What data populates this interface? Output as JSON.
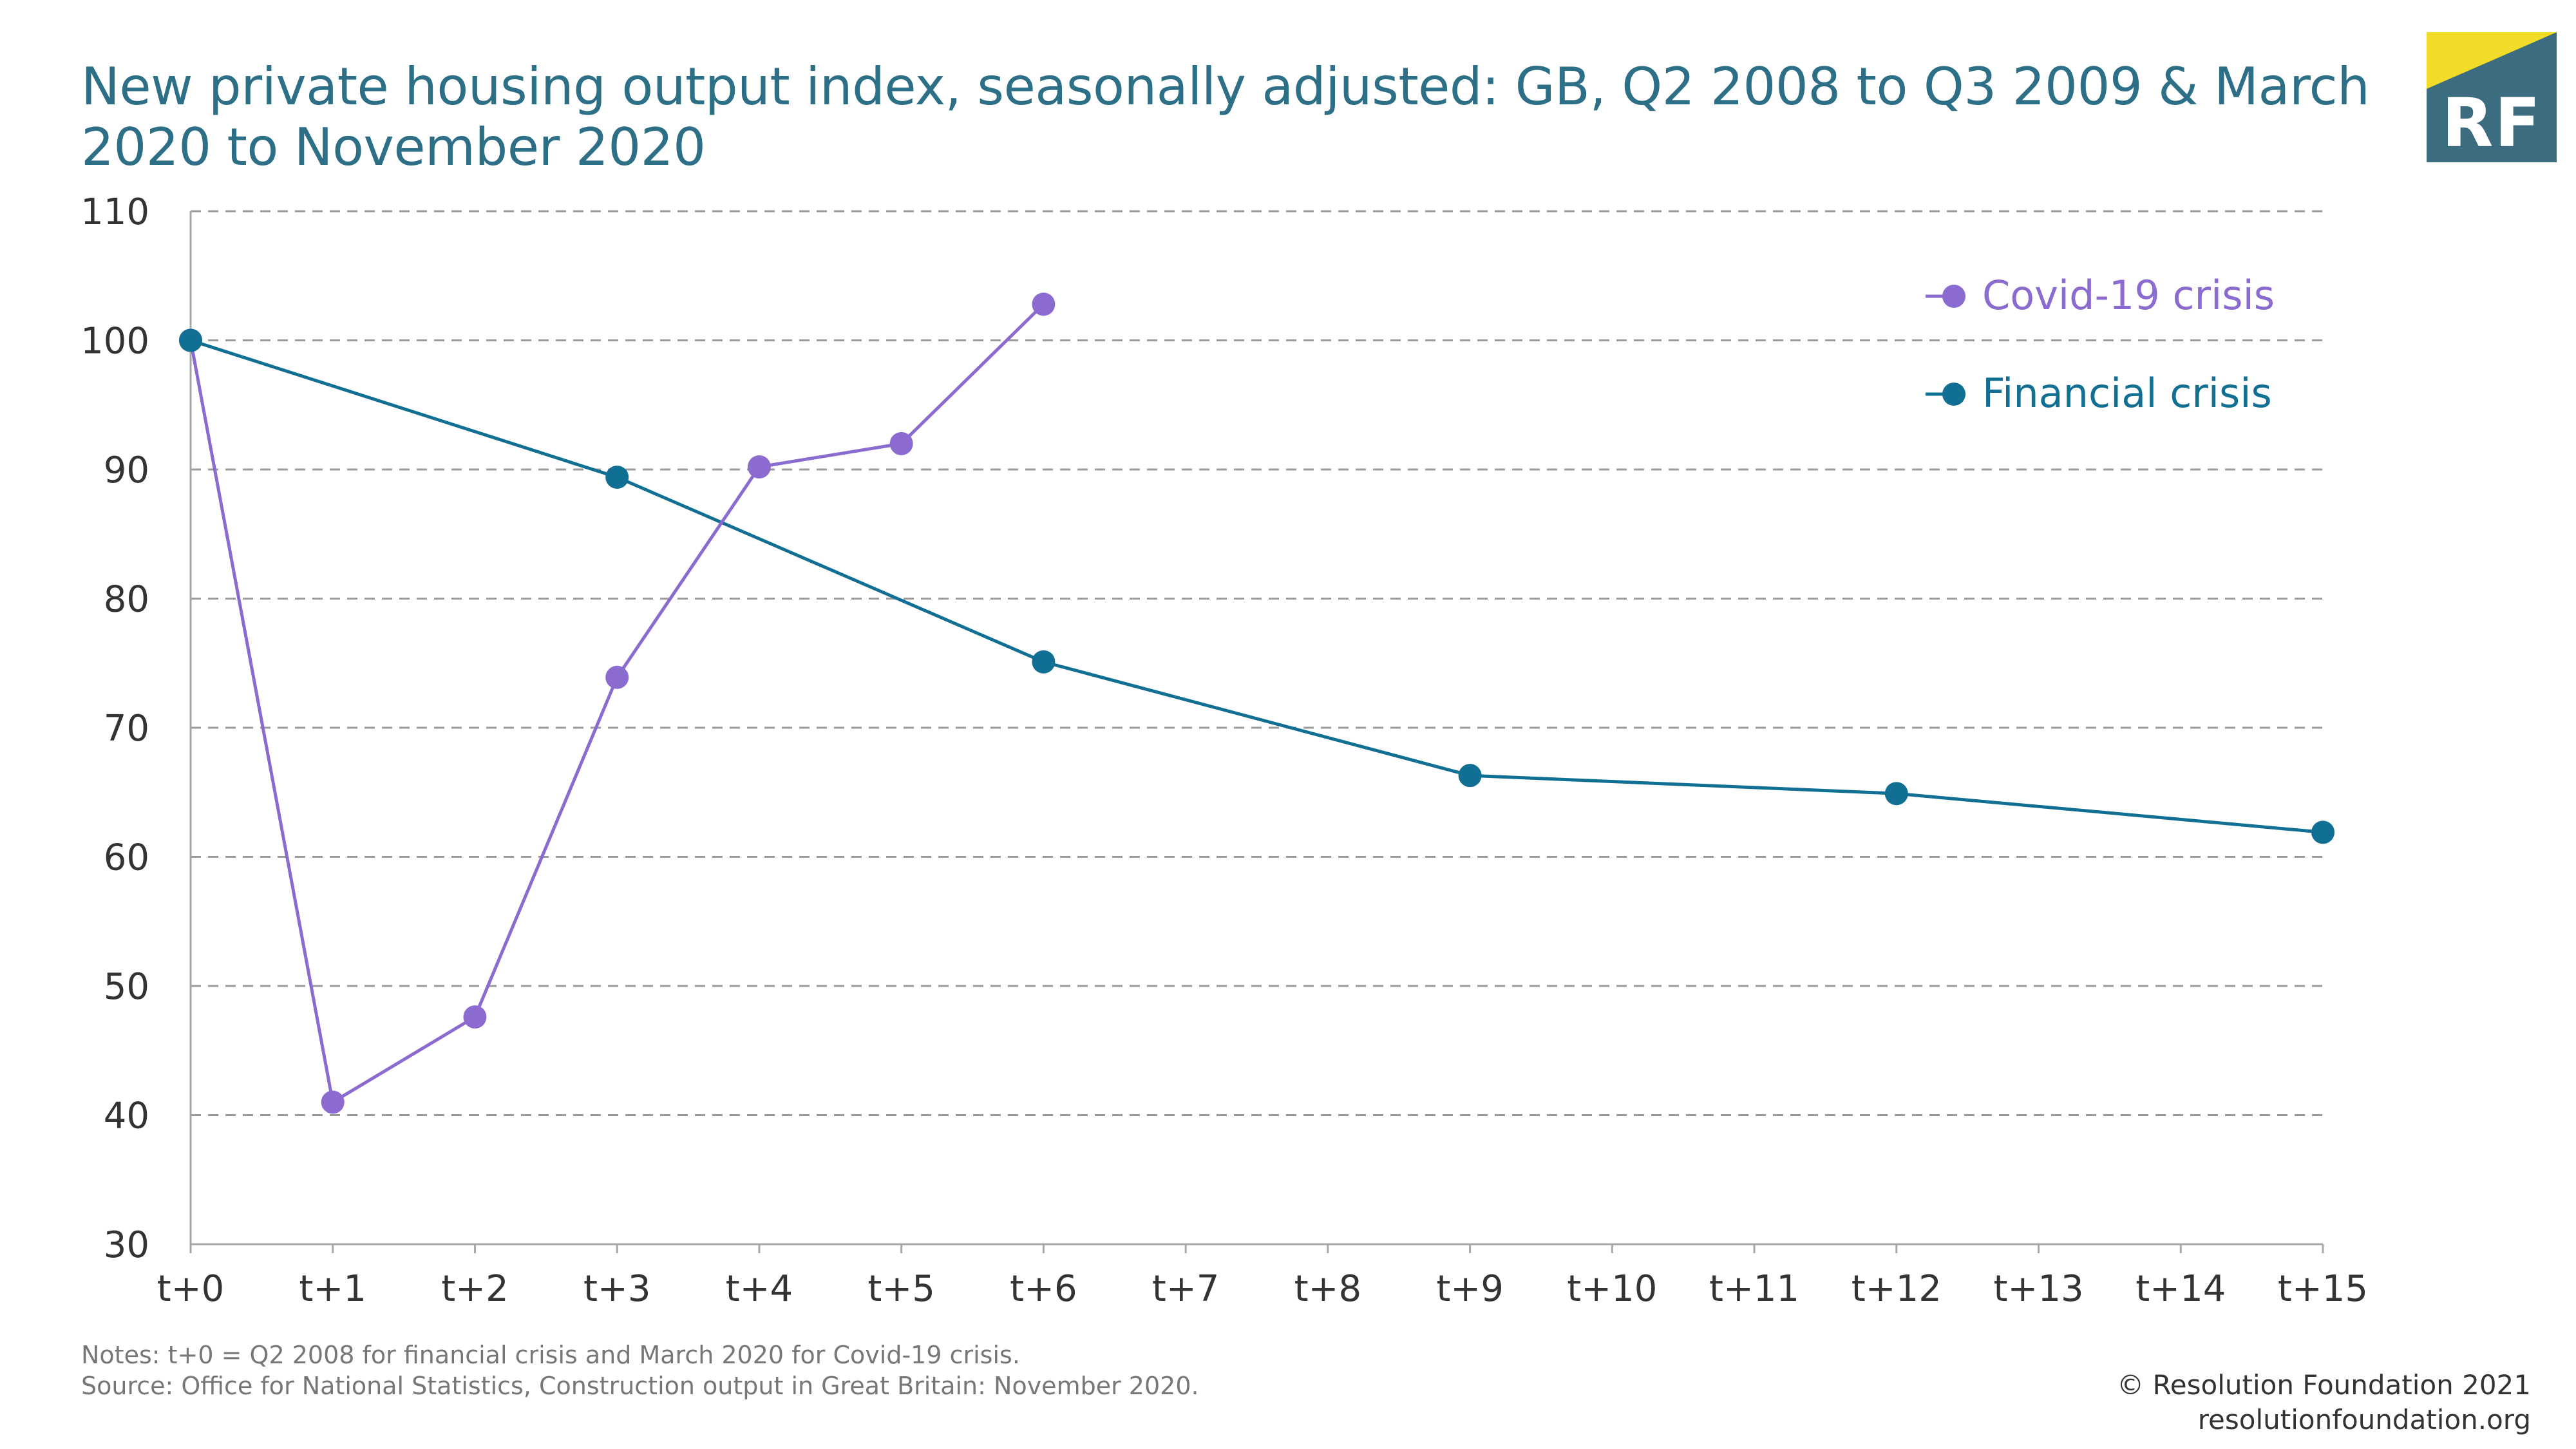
{
  "title": "New private housing output index, seasonally adjusted: GB, Q2 2008 to Q3 2009 & March 2020 to November 2020",
  "logo": {
    "text": "RF",
    "bg_color": "#3b6c80",
    "accent_color": "#f0dc29"
  },
  "notes": {
    "line1": "Notes: t+0 = Q2 2008 for financial crisis and March 2020 for Covid-19 crisis.",
    "line2": "Source: Office for National Statistics, Construction output in Great Britain: November 2020."
  },
  "credit": {
    "line1": "© Resolution Foundation 2021",
    "line2": "resolutionfoundation.org"
  },
  "chart_data": {
    "type": "line",
    "title": "New private housing output index, seasonally adjusted: GB, Q2 2008 to Q3 2009 & March 2020 to November 2020",
    "xlabel": "",
    "ylabel": "",
    "categories": [
      "t+0",
      "t+1",
      "t+2",
      "t+3",
      "t+4",
      "t+5",
      "t+6",
      "t+7",
      "t+8",
      "t+9",
      "t+10",
      "t+11",
      "t+12",
      "t+13",
      "t+14",
      "t+15"
    ],
    "yticks": [
      30,
      40,
      50,
      60,
      70,
      80,
      90,
      100,
      110
    ],
    "ylim": [
      30,
      110
    ],
    "grid": "horizontal dashed",
    "legend_position": "top-right",
    "series": [
      {
        "name": "Covid-19 crisis",
        "color": "#8c6bd1",
        "points": [
          {
            "x": "t+0",
            "y": 100
          },
          {
            "x": "t+1",
            "y": 41
          },
          {
            "x": "t+2",
            "y": 47.6
          },
          {
            "x": "t+3",
            "y": 73.9
          },
          {
            "x": "t+4",
            "y": 90.2
          },
          {
            "x": "t+5",
            "y": 92
          },
          {
            "x": "t+6",
            "y": 102.8
          }
        ]
      },
      {
        "name": "Financial crisis",
        "color": "#116f94",
        "points": [
          {
            "x": "t+0",
            "y": 100
          },
          {
            "x": "t+3",
            "y": 89.4
          },
          {
            "x": "t+6",
            "y": 75.1
          },
          {
            "x": "t+9",
            "y": 66.3
          },
          {
            "x": "t+12",
            "y": 64.9
          },
          {
            "x": "t+15",
            "y": 61.9
          }
        ]
      }
    ]
  }
}
